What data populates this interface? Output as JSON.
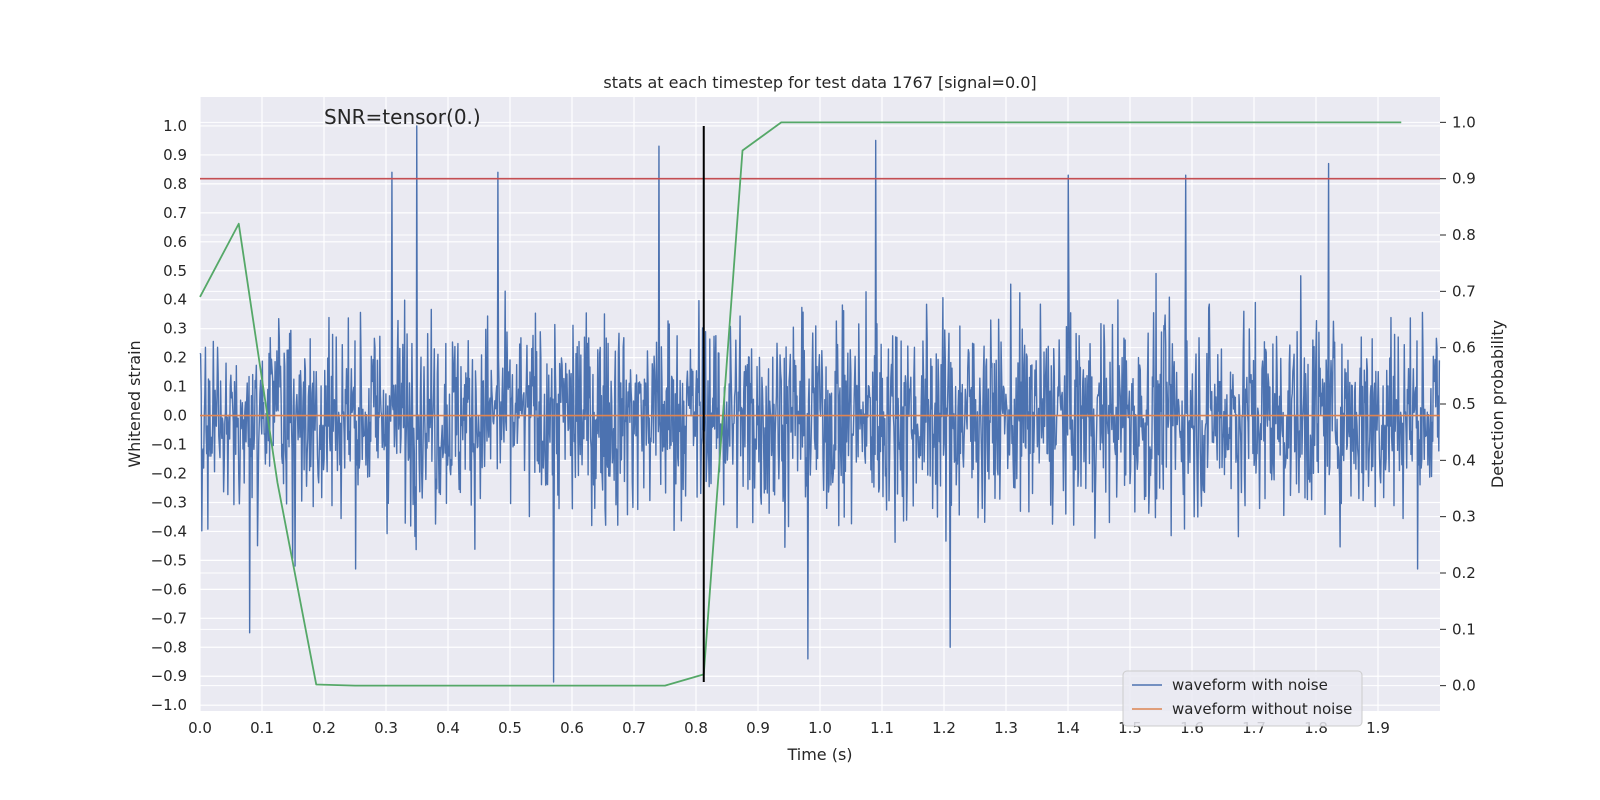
{
  "chart_data": {
    "type": "line",
    "title": "stats at each timestep for test data 1767 [signal=0.0]",
    "xlabel": "Time (s)",
    "ylabel": "Whitened strain",
    "y2label": "Detection probability",
    "annotation": "SNR=tensor(0.)",
    "xlim": [
      0.0,
      2.0
    ],
    "ylim": [
      -1.02,
      1.1
    ],
    "y2lim": [
      -0.045,
      1.045
    ],
    "x_ticks": [
      "0.0",
      "0.1",
      "0.2",
      "0.3",
      "0.4",
      "0.5",
      "0.6",
      "0.7",
      "0.8",
      "0.9",
      "1.0",
      "1.1",
      "1.2",
      "1.3",
      "1.4",
      "1.5",
      "1.6",
      "1.7",
      "1.8",
      "1.9"
    ],
    "y_ticks": [
      "1.0",
      "0.9",
      "0.8",
      "0.7",
      "0.6",
      "0.5",
      "0.4",
      "0.3",
      "0.2",
      "0.1",
      "0.0",
      "−0.1",
      "−0.2",
      "−0.3",
      "−0.4",
      "−0.5",
      "−0.6",
      "−0.7",
      "−0.8",
      "−0.9",
      "−1.0"
    ],
    "y2_ticks": [
      "1.0",
      "0.9",
      "0.8",
      "0.7",
      "0.6",
      "0.5",
      "0.4",
      "0.3",
      "0.2",
      "0.1",
      "0.0"
    ],
    "grid": true,
    "legend_position": "lower right",
    "series": [
      {
        "name": "waveform with noise",
        "axis": "left",
        "color": "#4c72b0",
        "sampling": "approx. 2048 samples over 0–2 s, values between −0.92 and 1.0 (noise, approximated)",
        "peaks": [
          {
            "x": 0.35,
            "y": 1.0
          },
          {
            "x": 0.31,
            "y": 0.84
          },
          {
            "x": 0.48,
            "y": 0.84
          },
          {
            "x": 0.74,
            "y": 0.93
          },
          {
            "x": 1.09,
            "y": 0.95
          },
          {
            "x": 1.4,
            "y": 0.83
          },
          {
            "x": 1.59,
            "y": 0.83
          },
          {
            "x": 1.82,
            "y": 0.87
          },
          {
            "x": 0.57,
            "y": -0.92
          },
          {
            "x": 0.08,
            "y": -0.75
          },
          {
            "x": 0.98,
            "y": -0.84
          },
          {
            "x": 1.21,
            "y": -0.8
          }
        ]
      },
      {
        "name": "waveform without noise",
        "axis": "left",
        "color": "#dd8452",
        "x": [
          0.0,
          2.0
        ],
        "y": [
          0.0,
          0.0
        ]
      },
      {
        "name": "",
        "axis": "right",
        "color": "#55a868",
        "x": [
          0.0,
          0.0625,
          0.125,
          0.1875,
          0.25,
          0.3125,
          0.375,
          0.4375,
          0.5,
          0.5625,
          0.625,
          0.6875,
          0.75,
          0.8125,
          0.875,
          0.9375,
          1.0,
          1.0625,
          1.125,
          1.1875,
          1.25,
          1.3125,
          1.375,
          1.4375,
          1.5,
          1.5625,
          1.625,
          1.6875,
          1.75,
          1.8125,
          1.875,
          1.9375
        ],
        "y": [
          0.69,
          0.82,
          0.36,
          0.002,
          0.0,
          0.0,
          0.0,
          0.0,
          0.0,
          0.0,
          0.0,
          0.0,
          0.0,
          0.02,
          0.95,
          1.0,
          1.0,
          1.0,
          1.0,
          1.0,
          1.0,
          1.0,
          1.0,
          1.0,
          1.0,
          1.0,
          1.0,
          1.0,
          1.0,
          1.0,
          1.0,
          1.0
        ]
      }
    ],
    "threshold": {
      "axis": "right",
      "y": 0.9,
      "color": "#c44e52"
    },
    "vline": {
      "x": 0.8125,
      "axis": "left",
      "ymin": -0.92,
      "ymax": 1.0,
      "color": "#000000"
    },
    "legend": [
      "waveform with noise",
      "waveform without noise"
    ]
  }
}
